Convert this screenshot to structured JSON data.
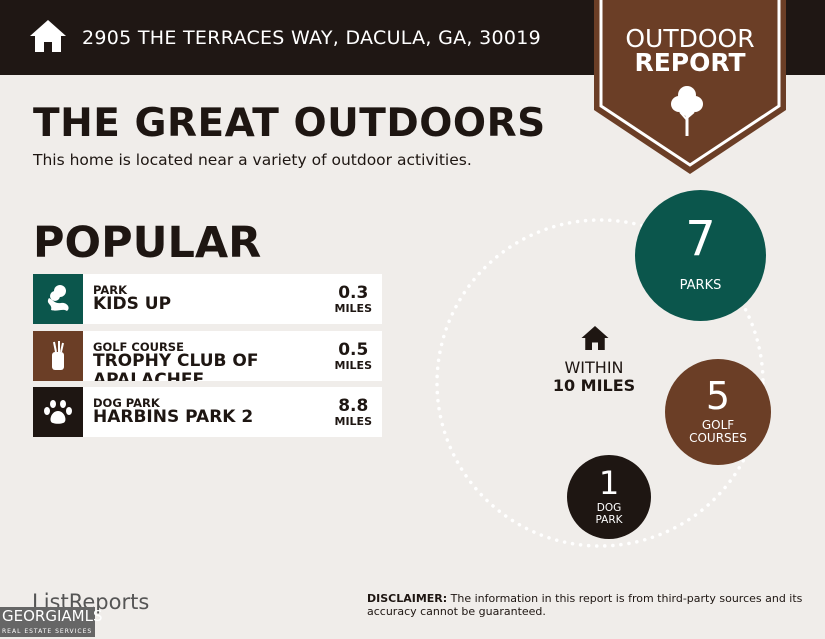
{
  "header": {
    "address": "2905 THE TERRACES WAY, DACULA, GA, 30019",
    "home_icon": "home-icon"
  },
  "badge": {
    "line1": "OUTDOOR",
    "line2": "REPORT",
    "icon": "tree-icon",
    "color": "#6b3e26"
  },
  "title": "THE GREAT OUTDOORS",
  "subtitle": "This home is located near a variety of outdoor activities.",
  "popular": {
    "heading": "POPULAR",
    "items": [
      {
        "category": "PARK",
        "name": "KIDS UP",
        "distance": "0.3",
        "unit": "MILES",
        "icon": "park-icon",
        "color": "#0b564c"
      },
      {
        "category": "GOLF COURSE",
        "name": "TROPHY CLUB OF APALACHEE",
        "distance": "0.5",
        "unit": "MILES",
        "icon": "golf-bag-icon",
        "color": "#6b3e26"
      },
      {
        "category": "DOG PARK",
        "name": "HARBINS PARK 2",
        "distance": "8.8",
        "unit": "MILES",
        "icon": "paw-icon",
        "color": "#1e1612"
      }
    ]
  },
  "summary": {
    "within": "WITHIN",
    "radius": "10 MILES",
    "parks": {
      "count": "7",
      "label": "PARKS",
      "color": "#0b564c"
    },
    "golf": {
      "count": "5",
      "label1": "GOLF",
      "label2": "COURSES",
      "color": "#6b3e26"
    },
    "dog": {
      "count": "1",
      "label1": "DOG",
      "label2": "PARK",
      "color": "#1e1612"
    }
  },
  "footer": {
    "brand": "ListReports",
    "mls": "GEORGIAMLS",
    "mls_sub": "REAL ESTATE SERVICES",
    "disclaimer_label": "DISCLAIMER:",
    "disclaimer": " The information in this report is from third-party sources and its accuracy cannot be guaranteed."
  }
}
